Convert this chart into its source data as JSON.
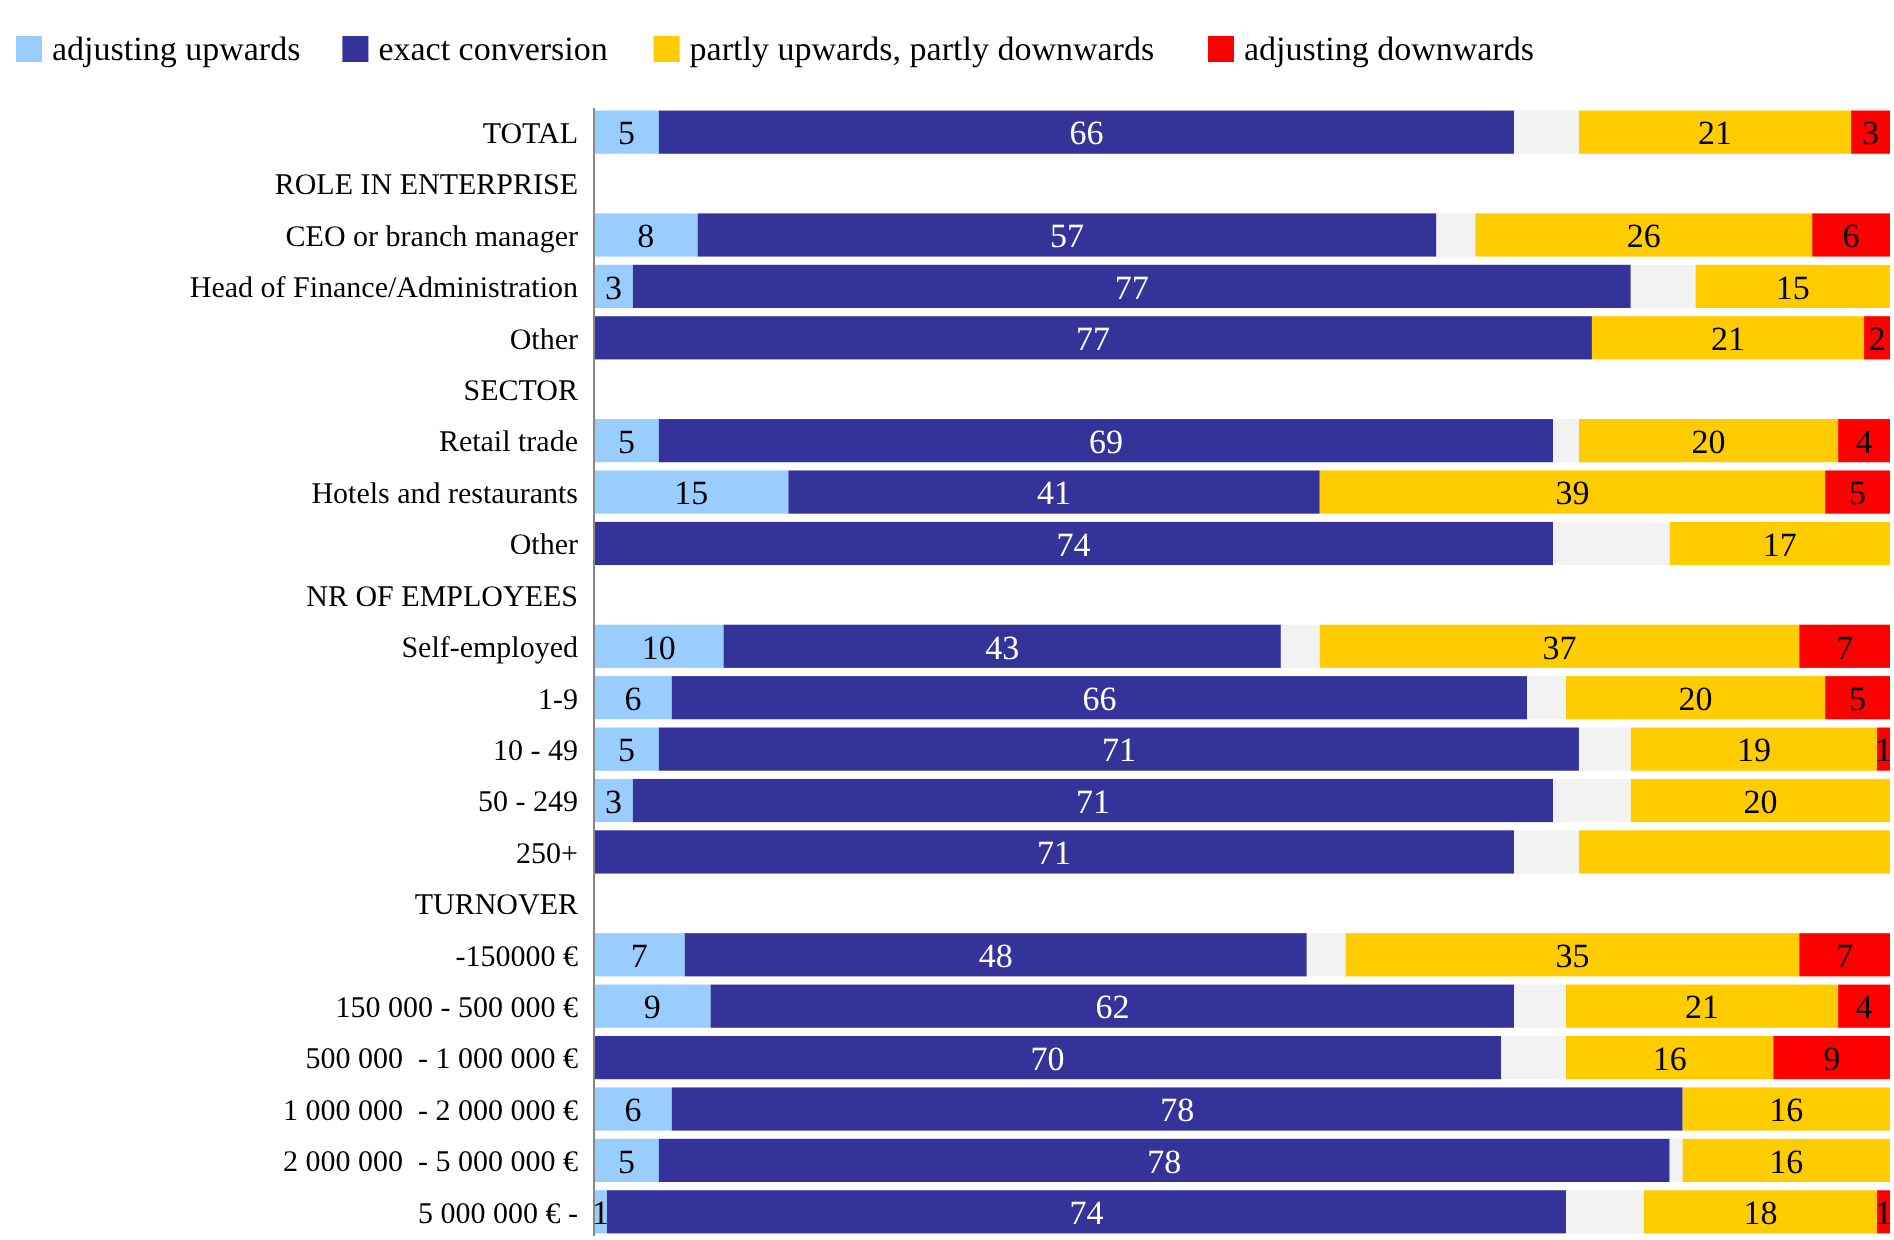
{
  "chart_data": {
    "type": "bar",
    "orientation": "horizontal",
    "stacked": true,
    "legend": "top",
    "tick_labels": "y",
    "xlim": [
      0,
      100
    ],
    "categories": [
      "TOTAL",
      "ROLE IN ENTERPRISE",
      "CEO or branch manager",
      "Head of Finance/Administration",
      "Other",
      "SECTOR",
      "Retail trade",
      "Hotels and restaurants",
      "Other",
      "NR OF EMPLOYEES",
      "Self-employed",
      "1-9",
      "10 - 49",
      "50 - 249",
      "250+",
      "TURNOVER",
      "-150000 €",
      "150 000 - 500 000 €",
      "500 000  - 1 000 000 €",
      "1 000 000  - 2 000 000 €",
      "2 000 000  - 5 000 000 €",
      "5 000 000 € -"
    ],
    "series": [
      {
        "name": "adjusting upwards",
        "color": "#99ccff",
        "values": [
          5,
          null,
          8,
          3,
          null,
          null,
          5,
          15,
          null,
          null,
          10,
          6,
          5,
          3,
          null,
          null,
          7,
          9,
          null,
          6,
          5,
          1
        ],
        "value_labels": [
          "5",
          null,
          "8",
          "3",
          null,
          null,
          "5",
          "15",
          null,
          null,
          "10",
          "6",
          "5",
          "3",
          null,
          null,
          "7",
          "9",
          null,
          "6",
          "5",
          "1"
        ]
      },
      {
        "name": "exact conversion",
        "color": "#333399",
        "values": [
          66,
          null,
          57,
          77,
          77,
          null,
          69,
          41,
          74,
          null,
          43,
          66,
          71,
          71,
          71,
          null,
          48,
          62,
          70,
          78,
          78,
          74
        ],
        "value_labels": [
          "66",
          null,
          "57",
          "77",
          "77",
          null,
          "69",
          "41",
          "74",
          null,
          "43",
          "66",
          "71",
          "71",
          "71",
          null,
          "48",
          "62",
          "70",
          "78",
          "78",
          "74"
        ]
      },
      {
        "color": "#f2f2f2",
        "values": [
          5,
          null,
          3,
          5,
          null,
          null,
          2,
          null,
          9,
          null,
          3,
          3,
          4,
          6,
          5,
          null,
          3,
          4,
          5,
          null,
          1,
          6
        ]
      },
      {
        "name": "partly upwards, partly downwards",
        "color": "#ffcc00",
        "values": [
          21,
          null,
          26,
          15,
          21,
          null,
          20,
          39,
          17,
          null,
          37,
          20,
          19,
          20,
          24,
          null,
          35,
          21,
          16,
          16,
          16,
          18
        ],
        "value_labels": [
          "21",
          null,
          "26",
          "15",
          "21",
          null,
          "20",
          "39",
          "17",
          null,
          "37",
          "20",
          "19",
          "20",
          null,
          null,
          "35",
          "21",
          "16",
          "16",
          "16",
          "18"
        ]
      },
      {
        "name": "adjusting downwards",
        "color": "#ff0000",
        "values": [
          3,
          null,
          6,
          null,
          2,
          null,
          4,
          5,
          null,
          null,
          7,
          5,
          1,
          null,
          null,
          null,
          7,
          4,
          9,
          null,
          null,
          1
        ],
        "value_labels": [
          "3",
          null,
          "6",
          null,
          "2",
          null,
          "4",
          "5",
          null,
          null,
          "7",
          "5",
          "1",
          null,
          null,
          null,
          "7",
          "4",
          "9",
          null,
          null,
          "1"
        ]
      }
    ]
  }
}
